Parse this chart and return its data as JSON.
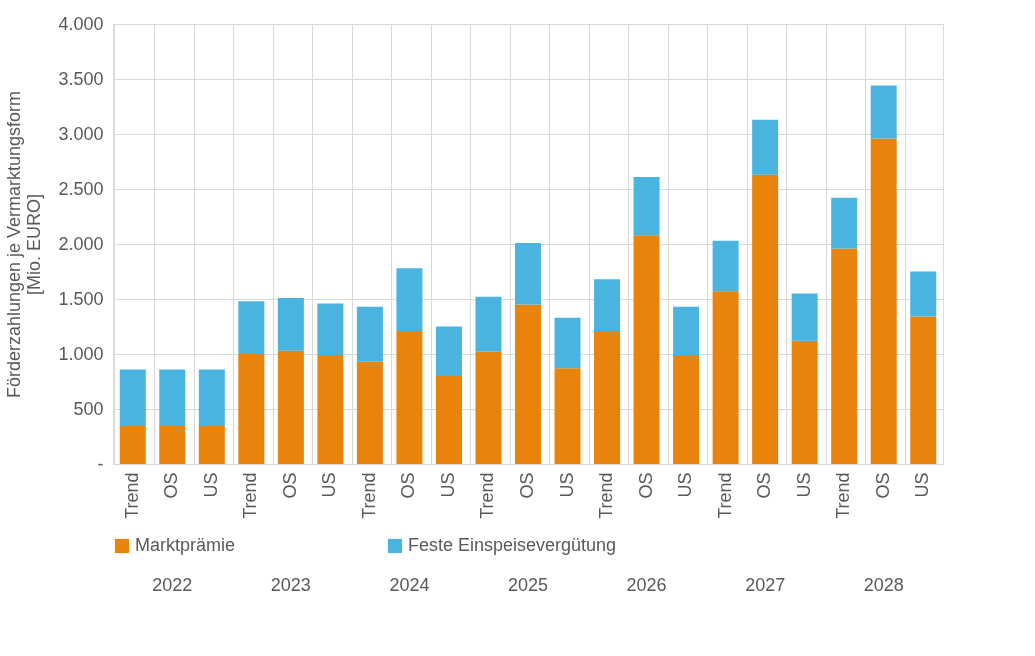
{
  "chart_data": {
    "type": "bar",
    "stacked": true,
    "ylabel": "Förderzahlungen je Vermarktungsform\n[Mio. EURO]",
    "categories": [
      "Trend",
      "OS",
      "US",
      "Trend",
      "OS",
      "US",
      "Trend",
      "OS",
      "US",
      "Trend",
      "OS",
      "US",
      "Trend",
      "OS",
      "US",
      "Trend",
      "OS",
      "US",
      "Trend",
      "OS",
      "US"
    ],
    "annotations": [
      "2022",
      "2023",
      "2024",
      "2025",
      "2026",
      "2027",
      "2028"
    ],
    "series": [
      {
        "name": "Marktprämie",
        "color": "#e8830c",
        "values": [
          345,
          345,
          345,
          1000,
          1030,
          990,
          930,
          1210,
          800,
          1020,
          1450,
          870,
          1210,
          2080,
          990,
          1570,
          2630,
          1120,
          1960,
          2960,
          1340
        ]
      },
      {
        "name": "Feste Einspeisevergütung",
        "color": "#4ab4e0",
        "values": [
          515,
          515,
          515,
          480,
          480,
          470,
          500,
          570,
          450,
          500,
          560,
          460,
          470,
          530,
          440,
          460,
          500,
          430,
          460,
          480,
          410
        ]
      }
    ],
    "ylim": [
      0,
      4000
    ],
    "yticks": [
      {
        "value": 0,
        "label": "-"
      },
      500,
      {
        "value": 1000,
        "label": "1.000"
      },
      {
        "value": 1500,
        "label": "1.500"
      },
      {
        "value": 2000,
        "label": "2.000"
      },
      {
        "value": 2500,
        "label": "2.500"
      },
      {
        "value": 3000,
        "label": "3.000"
      },
      {
        "value": 3500,
        "label": "3.500"
      },
      {
        "value": 4000,
        "label": "4.000"
      }
    ],
    "grid": true,
    "legend": "bottom"
  }
}
